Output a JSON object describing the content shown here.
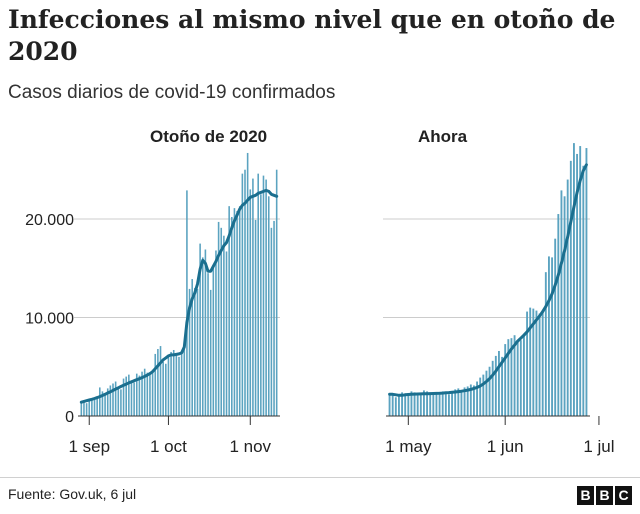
{
  "header": {
    "title": "Infecciones al mismo nivel que en otoño de 2020",
    "subtitle": "Casos diarios de covid-19 confirmados"
  },
  "footer": {
    "source": "Fuente: Gov.uk, 6 jul",
    "logo_letters": [
      "B",
      "B",
      "C"
    ]
  },
  "colors": {
    "bars": "#5ba3c0",
    "line": "#1b6f8f",
    "grid": "#cccccc"
  },
  "chart_data": [
    {
      "type": "bar",
      "title": "Otoño de 2020",
      "start_date": "2020-08-29",
      "x_tick_labels": [
        "1 sep",
        "1 oct",
        "1 nov"
      ],
      "y_tick_labels": [
        "0",
        "10.000",
        "20.000"
      ],
      "y_ticks": [
        0,
        10000,
        20000
      ],
      "ylim": [
        0,
        27000
      ],
      "grid": true,
      "values": [
        1400,
        1600,
        1300,
        1500,
        1700,
        1800,
        2000,
        2900,
        2500,
        2300,
        2800,
        3100,
        3300,
        3500,
        2900,
        2700,
        3800,
        4000,
        4200,
        3600,
        3400,
        4300,
        4100,
        4500,
        4800,
        4400,
        4200,
        4700,
        6300,
        6800,
        7100,
        5500,
        5300,
        6200,
        6500,
        6700,
        6200,
        6000,
        6300,
        7200,
        22900,
        12900,
        13900,
        13000,
        12900,
        17500,
        16100,
        16900,
        14500,
        12800,
        15200,
        16800,
        19700,
        19100,
        18300,
        16700,
        21300,
        20200,
        21100,
        20800,
        21300,
        24600,
        25000,
        26700,
        23000,
        24100,
        19900,
        24600,
        22500,
        24400,
        24000,
        22300,
        19100,
        19800,
        25000
      ],
      "trend": [
        1400,
        1480,
        1550,
        1620,
        1700,
        1780,
        1870,
        1970,
        2080,
        2200,
        2330,
        2460,
        2600,
        2730,
        2860,
        2990,
        3120,
        3240,
        3360,
        3470,
        3580,
        3680,
        3790,
        3900,
        4020,
        4150,
        4300,
        4500,
        4800,
        5100,
        5400,
        5700,
        5900,
        6100,
        6200,
        6200,
        6250,
        6300,
        6400,
        7000,
        9500,
        11000,
        11900,
        12500,
        13400,
        14900,
        15800,
        15500,
        14700,
        14700,
        15200,
        15700,
        16300,
        16800,
        17300,
        17600,
        18300,
        19100,
        19800,
        20400,
        21000,
        21400,
        21600,
        21900,
        22200,
        22300,
        22400,
        22600,
        22700,
        22800,
        22900,
        22800,
        22500,
        22400,
        22300
      ]
    },
    {
      "type": "bar",
      "title": "Ahora",
      "start_date": "2021-04-25",
      "x_tick_labels": [
        "1 may",
        "1 jun",
        "1 jul"
      ],
      "y_tick_labels": [],
      "y_ticks": [
        0,
        10000,
        20000
      ],
      "ylim": [
        0,
        27000
      ],
      "grid": true,
      "values": [
        2200,
        2300,
        1900,
        2000,
        2400,
        2300,
        2200,
        2500,
        2400,
        2100,
        2200,
        2600,
        2500,
        2400,
        2300,
        2200,
        2400,
        2500,
        2300,
        2200,
        2400,
        2700,
        2800,
        2600,
        2900,
        3000,
        3200,
        3100,
        3500,
        3900,
        4200,
        4600,
        5000,
        5600,
        6100,
        6600,
        6000,
        7300,
        7800,
        7900,
        8200,
        7600,
        7700,
        8100,
        10600,
        11000,
        10900,
        10700,
        10400,
        10600,
        14600,
        16200,
        16100,
        18000,
        20500,
        22900,
        22300,
        24000,
        25900,
        27700,
        26600,
        27400,
        25400,
        27200
      ],
      "trend": [
        2200,
        2200,
        2150,
        2100,
        2100,
        2150,
        2180,
        2200,
        2220,
        2230,
        2240,
        2250,
        2260,
        2270,
        2280,
        2290,
        2300,
        2320,
        2350,
        2380,
        2410,
        2440,
        2480,
        2520,
        2570,
        2630,
        2700,
        2790,
        2900,
        3050,
        3250,
        3500,
        3800,
        4150,
        4550,
        5000,
        5450,
        5900,
        6350,
        6800,
        7200,
        7600,
        7900,
        8200,
        8550,
        8950,
        9350,
        9750,
        10150,
        10600,
        11100,
        11700,
        12400,
        13300,
        14300,
        15500,
        16800,
        18200,
        19700,
        21200,
        22700,
        23900,
        24900,
        25500
      ]
    }
  ]
}
